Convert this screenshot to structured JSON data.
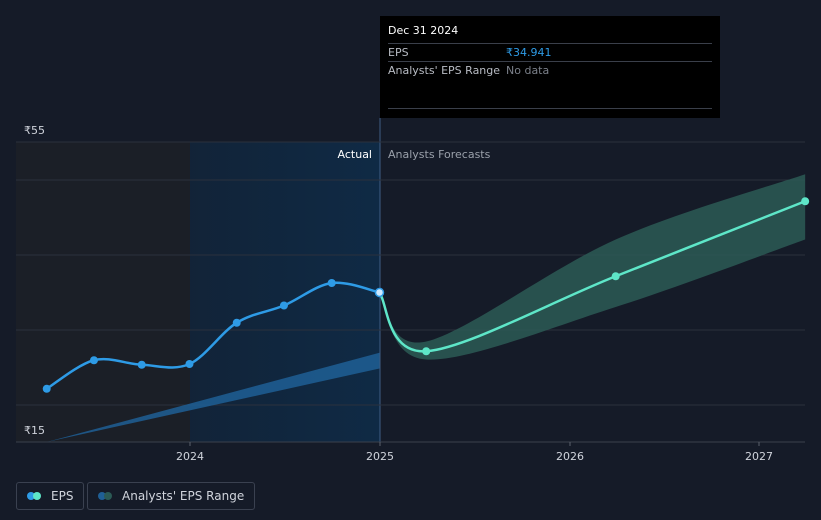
{
  "tooltip": {
    "date": "Dec 31 2024",
    "rows": [
      {
        "label": "EPS",
        "value": "₹34.941"
      },
      {
        "label": "Analysts' EPS Range",
        "value": "No data"
      }
    ]
  },
  "section_labels": {
    "actual": "Actual",
    "forecast": "Analysts Forecasts"
  },
  "legend": [
    {
      "label": "EPS"
    },
    {
      "label": "Analysts' EPS Range"
    }
  ],
  "colors": {
    "background": "#151b28",
    "actual_line": "#2e9be6",
    "forecast_line": "#5ee6c8",
    "forecast_band": "#2b5a55",
    "past_range_band": "#1f5f95",
    "actual_shade": "#0f2a45"
  },
  "chart_data": {
    "type": "line",
    "y_axis": {
      "tick_labels": [
        "₹55",
        "₹15"
      ],
      "ylim": [
        15,
        55
      ]
    },
    "x_axis": {
      "tick_labels": [
        "2024",
        "2025",
        "2026",
        "2027"
      ]
    },
    "grid": true,
    "legend_position": "bottom-left",
    "series": [
      {
        "name": "EPS",
        "kind": "actual",
        "points": [
          {
            "x": "2023-03-31",
            "y": 22.1
          },
          {
            "x": "2023-06-30",
            "y": 25.9
          },
          {
            "x": "2023-09-30",
            "y": 25.3
          },
          {
            "x": "2023-12-31",
            "y": 25.4
          },
          {
            "x": "2024-03-31",
            "y": 30.9
          },
          {
            "x": "2024-06-30",
            "y": 33.2
          },
          {
            "x": "2024-09-30",
            "y": 36.2
          },
          {
            "x": "2024-12-31",
            "y": 34.941
          }
        ]
      },
      {
        "name": "EPS",
        "kind": "forecast",
        "points": [
          {
            "x": "2024-12-31",
            "y": 34.941
          },
          {
            "x": "2025-03-31",
            "y": 27.1
          },
          {
            "x": "2026-03-31",
            "y": 37.1
          },
          {
            "x": "2027-03-31",
            "y": 47.1
          }
        ]
      }
    ],
    "forecast_range": {
      "name": "Analysts' EPS Range",
      "upper": [
        {
          "x": "2024-12-31",
          "y": 34.941
        },
        {
          "x": "2025-03-31",
          "y": 28.4
        },
        {
          "x": "2026-03-31",
          "y": 42.0
        },
        {
          "x": "2027-03-31",
          "y": 50.7
        }
      ],
      "lower": [
        {
          "x": "2024-12-31",
          "y": 34.941
        },
        {
          "x": "2025-03-31",
          "y": 26.0
        },
        {
          "x": "2026-03-31",
          "y": 33.0
        },
        {
          "x": "2027-03-31",
          "y": 42.0
        }
      ]
    },
    "past_range": {
      "upper": [
        {
          "x": "2023-03-31",
          "y": 15.0
        },
        {
          "x": "2024-12-31",
          "y": 26.9
        }
      ],
      "lower": [
        {
          "x": "2023-03-31",
          "y": 15.0
        },
        {
          "x": "2024-12-31",
          "y": 24.8
        }
      ]
    }
  }
}
